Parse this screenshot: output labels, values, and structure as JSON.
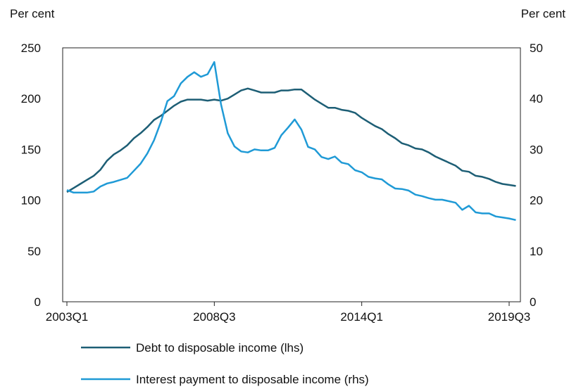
{
  "chart_data": {
    "type": "line",
    "title": "",
    "ylabel_left": "Per cent",
    "ylabel_right": "Per cent",
    "ylim_left": [
      0,
      250
    ],
    "ylim_right": [
      0,
      50
    ],
    "yticks_left": [
      "0",
      "50",
      "100",
      "150",
      "200",
      "250"
    ],
    "yticks_right": [
      "0",
      "10",
      "20",
      "30",
      "40",
      "50"
    ],
    "xticks": [
      "2003Q1",
      "2008Q3",
      "2014Q1",
      "2019Q3"
    ],
    "grid": false,
    "legend_position": "bottom-left",
    "series": [
      {
        "name": "Debt to disposable income (lhs)",
        "axis": "left",
        "color": "#1d5e75",
        "values": [
          108,
          112,
          116,
          120,
          124,
          130,
          139,
          145,
          149,
          154,
          161,
          166,
          172,
          179,
          183,
          188,
          193,
          197,
          199,
          199,
          199,
          198,
          199,
          198,
          200,
          204,
          208,
          210,
          208,
          206,
          206,
          206,
          208,
          208,
          209,
          209,
          204,
          199,
          195,
          191,
          191,
          189,
          188,
          186,
          181,
          177,
          173,
          170,
          165,
          161,
          156,
          154,
          151,
          150,
          147,
          143,
          140,
          137,
          134,
          129,
          128,
          124,
          123,
          121,
          118,
          116,
          115,
          114
        ],
        "xlabels": "quarterly 2003Q1-2019Q4"
      },
      {
        "name": "Interest payment to disposable income (rhs)",
        "axis": "right",
        "color": "#1f9ad6",
        "values": [
          22,
          21.5,
          21.5,
          21.5,
          21.7,
          22.7,
          23.3,
          23.6,
          24,
          24.4,
          25.8,
          27.2,
          29.2,
          31.8,
          35.3,
          39.5,
          40.5,
          43,
          44.3,
          45.2,
          44.3,
          44.8,
          47.2,
          38.9,
          33.2,
          30.6,
          29.6,
          29.4,
          30,
          29.8,
          29.8,
          30.3,
          32.8,
          34.3,
          35.9,
          33.9,
          30.5,
          30,
          28.5,
          28.1,
          28.6,
          27.4,
          27.1,
          25.9,
          25.5,
          24.6,
          24.3,
          24.1,
          23.1,
          22.3,
          22.2,
          21.9,
          21.1,
          20.8,
          20.4,
          20.1,
          20.1,
          19.8,
          19.5,
          18.1,
          18.9,
          17.6,
          17.4,
          17.4,
          16.8,
          16.6,
          16.4,
          16.1
        ],
        "xlabels": "quarterly 2003Q1-2019Q4"
      }
    ]
  }
}
